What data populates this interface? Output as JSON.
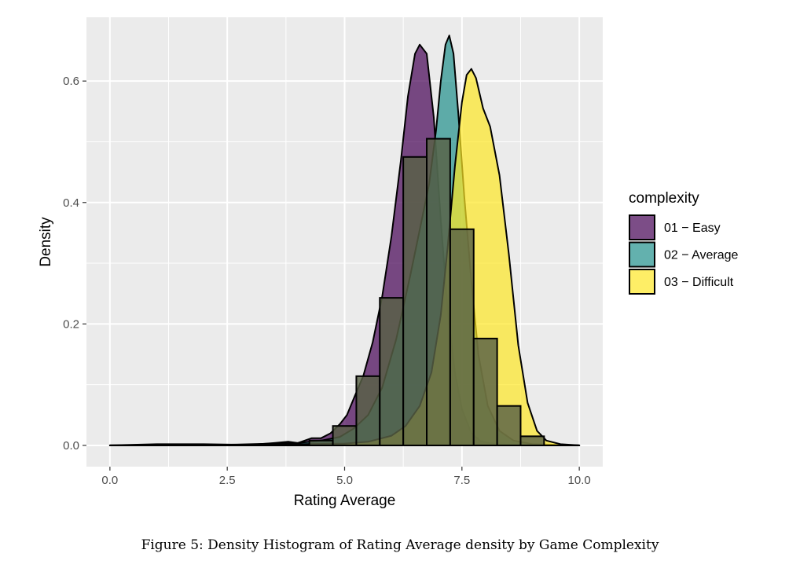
{
  "caption": "Figure 5: Density Histogram of Rating Average density by Game Complexity",
  "chart_data": {
    "type": "histogram-density",
    "title": "",
    "xlabel": "Rating Average",
    "ylabel": "Density",
    "xlim": [
      -0.5,
      10.5
    ],
    "ylim": [
      -0.035,
      0.705
    ],
    "x_ticks": [
      {
        "value": 0,
        "label": "0.0"
      },
      {
        "value": 2.5,
        "label": "2.5"
      },
      {
        "value": 5,
        "label": "5.0"
      },
      {
        "value": 7.5,
        "label": "7.5"
      },
      {
        "value": 10,
        "label": "10.0"
      }
    ],
    "y_ticks": [
      {
        "value": 0,
        "label": "0.0"
      },
      {
        "value": 0.2,
        "label": "0.2"
      },
      {
        "value": 0.4,
        "label": "0.4"
      },
      {
        "value": 0.6,
        "label": "0.6"
      }
    ],
    "grid": true,
    "legend": {
      "title": "complexity",
      "position": "right",
      "items": [
        {
          "label": "01 − Easy",
          "color": "#440154"
        },
        {
          "label": "02 − Average",
          "color": "#21908C"
        },
        {
          "label": "03 − Difficult",
          "color": "#FDE725"
        }
      ]
    },
    "histogram": {
      "bin_width": 0.5,
      "bins": [
        {
          "x0": 4.25,
          "x1": 4.75,
          "density": 0.008
        },
        {
          "x0": 4.75,
          "x1": 5.25,
          "density": 0.032
        },
        {
          "x0": 5.25,
          "x1": 5.75,
          "density": 0.114
        },
        {
          "x0": 5.75,
          "x1": 6.25,
          "density": 0.243
        },
        {
          "x0": 6.25,
          "x1": 6.75,
          "density": 0.475
        },
        {
          "x0": 6.75,
          "x1": 7.25,
          "density": 0.505
        },
        {
          "x0": 7.25,
          "x1": 7.75,
          "density": 0.356
        },
        {
          "x0": 7.75,
          "x1": 8.25,
          "density": 0.176
        },
        {
          "x0": 8.25,
          "x1": 8.75,
          "density": 0.065
        },
        {
          "x0": 8.75,
          "x1": 9.25,
          "density": 0.015
        }
      ],
      "fill": "#586046",
      "stroke": "#000000"
    },
    "series": [
      {
        "name": "01 − Easy",
        "color": "#440154",
        "points": [
          [
            0,
            0
          ],
          [
            1,
            0.002
          ],
          [
            2,
            0.002
          ],
          [
            3,
            0.001
          ],
          [
            3.5,
            0.004
          ],
          [
            3.8,
            0.006
          ],
          [
            4,
            0.004
          ],
          [
            4.3,
            0.012
          ],
          [
            4.5,
            0.012
          ],
          [
            4.7,
            0.02
          ],
          [
            4.9,
            0.035
          ],
          [
            5.05,
            0.05
          ],
          [
            5.2,
            0.078
          ],
          [
            5.4,
            0.115
          ],
          [
            5.6,
            0.17
          ],
          [
            5.8,
            0.245
          ],
          [
            6.0,
            0.345
          ],
          [
            6.2,
            0.47
          ],
          [
            6.35,
            0.575
          ],
          [
            6.5,
            0.645
          ],
          [
            6.6,
            0.66
          ],
          [
            6.75,
            0.645
          ],
          [
            6.9,
            0.54
          ],
          [
            7.05,
            0.37
          ],
          [
            7.2,
            0.22
          ],
          [
            7.35,
            0.12
          ],
          [
            7.5,
            0.06
          ],
          [
            7.7,
            0.02
          ],
          [
            7.9,
            0.007
          ],
          [
            8.2,
            0.002
          ],
          [
            9,
            0
          ],
          [
            10,
            0
          ]
        ]
      },
      {
        "name": "02 − Average",
        "color": "#21908C",
        "points": [
          [
            0,
            0
          ],
          [
            2,
            0
          ],
          [
            3,
            0.002
          ],
          [
            4,
            0.004
          ],
          [
            4.5,
            0.008
          ],
          [
            4.9,
            0.014
          ],
          [
            5.2,
            0.028
          ],
          [
            5.5,
            0.05
          ],
          [
            5.8,
            0.095
          ],
          [
            6.1,
            0.175
          ],
          [
            6.4,
            0.28
          ],
          [
            6.6,
            0.355
          ],
          [
            6.8,
            0.43
          ],
          [
            6.95,
            0.52
          ],
          [
            7.05,
            0.6
          ],
          [
            7.15,
            0.66
          ],
          [
            7.23,
            0.675
          ],
          [
            7.32,
            0.645
          ],
          [
            7.42,
            0.55
          ],
          [
            7.55,
            0.41
          ],
          [
            7.7,
            0.27
          ],
          [
            7.85,
            0.15
          ],
          [
            8.05,
            0.065
          ],
          [
            8.3,
            0.024
          ],
          [
            8.6,
            0.008
          ],
          [
            9,
            0.002
          ],
          [
            10,
            0
          ]
        ]
      },
      {
        "name": "03 − Difficult",
        "color": "#FDE725",
        "points": [
          [
            0,
            0
          ],
          [
            3,
            0
          ],
          [
            4,
            0.002
          ],
          [
            5,
            0.003
          ],
          [
            5.5,
            0.006
          ],
          [
            6.0,
            0.016
          ],
          [
            6.3,
            0.032
          ],
          [
            6.6,
            0.065
          ],
          [
            6.85,
            0.12
          ],
          [
            7.05,
            0.215
          ],
          [
            7.2,
            0.33
          ],
          [
            7.35,
            0.46
          ],
          [
            7.5,
            0.565
          ],
          [
            7.6,
            0.61
          ],
          [
            7.7,
            0.62
          ],
          [
            7.8,
            0.605
          ],
          [
            7.95,
            0.555
          ],
          [
            8.1,
            0.525
          ],
          [
            8.3,
            0.445
          ],
          [
            8.5,
            0.315
          ],
          [
            8.7,
            0.165
          ],
          [
            8.9,
            0.07
          ],
          [
            9.1,
            0.024
          ],
          [
            9.3,
            0.008
          ],
          [
            9.6,
            0.002
          ],
          [
            10,
            0
          ]
        ]
      }
    ]
  }
}
